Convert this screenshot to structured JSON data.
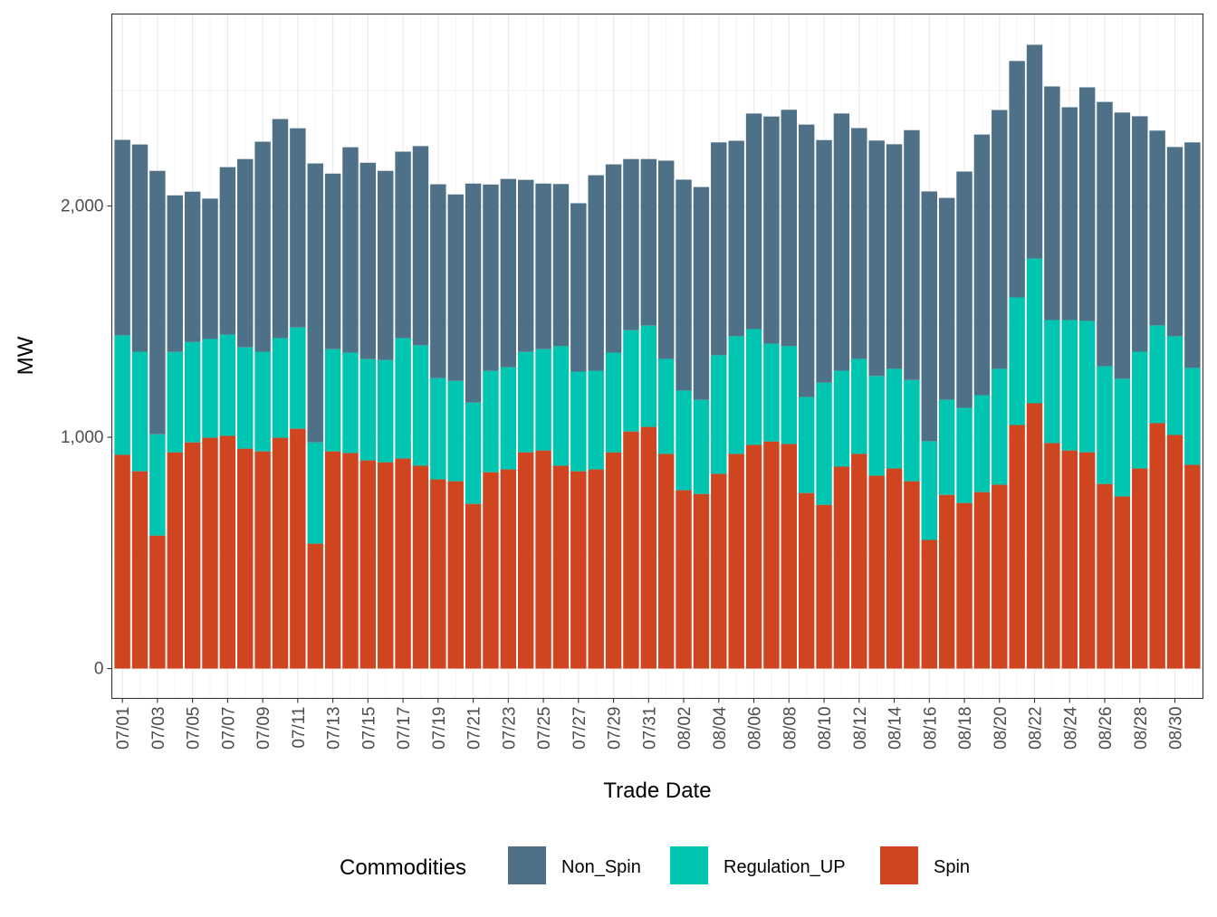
{
  "chart_data": {
    "type": "bar",
    "stacked": true,
    "xlabel": "Trade Date",
    "ylabel": "MW",
    "ylim": [
      -129,
      2830
    ],
    "y_ticks": [
      0,
      1000,
      2000
    ],
    "y_tick_labels": [
      "0",
      "1,000",
      "2,000"
    ],
    "grid": true,
    "legend": {
      "title": "Commodities",
      "placement": "bottom"
    },
    "categories": [
      "07/01",
      "07/02",
      "07/03",
      "07/04",
      "07/05",
      "07/06",
      "07/07",
      "07/08",
      "07/09",
      "07/10",
      "07/11",
      "07/12",
      "07/13",
      "07/14",
      "07/15",
      "07/16",
      "07/17",
      "07/18",
      "07/19",
      "07/20",
      "07/21",
      "07/22",
      "07/23",
      "07/24",
      "07/25",
      "07/26",
      "07/27",
      "07/28",
      "07/29",
      "07/30",
      "07/31",
      "08/01",
      "08/02",
      "08/03",
      "08/04",
      "08/05",
      "08/06",
      "08/07",
      "08/08",
      "08/09",
      "08/10",
      "08/11",
      "08/12",
      "08/13",
      "08/14",
      "08/15",
      "08/16",
      "08/17",
      "08/18",
      "08/19",
      "08/20",
      "08/21",
      "08/22",
      "08/23",
      "08/24",
      "08/25",
      "08/26",
      "08/27",
      "08/28",
      "08/29",
      "08/30",
      "08/31"
    ],
    "x_tick_labels": [
      "07/01",
      "07/03",
      "07/05",
      "07/07",
      "07/09",
      "07/11",
      "07/13",
      "07/15",
      "07/17",
      "07/19",
      "07/21",
      "07/23",
      "07/25",
      "07/27",
      "07/29",
      "07/31",
      "08/02",
      "08/04",
      "08/06",
      "08/08",
      "08/10",
      "08/12",
      "08/14",
      "08/16",
      "08/18",
      "08/20",
      "08/22",
      "08/24",
      "08/26",
      "08/28",
      "08/30"
    ],
    "series": [
      {
        "name": "Spin",
        "color": "#cf4520",
        "values": [
          924,
          853,
          575,
          935,
          978,
          998,
          1006,
          951,
          939,
          998,
          1037,
          540,
          939,
          932,
          900,
          892,
          908,
          877,
          818,
          810,
          712,
          849,
          861,
          935,
          943,
          877,
          853,
          861,
          935,
          1025,
          1045,
          928,
          771,
          755,
          842,
          928,
          967,
          982,
          971,
          759,
          708,
          873,
          928,
          834,
          865,
          810,
          556,
          751,
          716,
          763,
          795,
          1053,
          1147,
          975,
          943,
          935,
          798,
          744,
          865,
          1061,
          1010,
          881
        ]
      },
      {
        "name": "Regulation_UP",
        "color": "#00c5b0",
        "values": [
          517,
          517,
          438,
          434,
          434,
          427,
          438,
          438,
          431,
          431,
          438,
          438,
          442,
          434,
          438,
          442,
          521,
          521,
          438,
          434,
          438,
          438,
          442,
          434,
          438,
          517,
          431,
          427,
          431,
          438,
          438,
          411,
          431,
          407,
          513,
          509,
          501,
          423,
          423,
          415,
          528,
          415,
          411,
          431,
          431,
          438,
          427,
          411,
          411,
          419,
          501,
          552,
          626,
          532,
          564,
          568,
          509,
          509,
          505,
          423,
          427,
          419
        ]
      },
      {
        "name": "Non_Spin",
        "color": "#4e7188",
        "values": [
          845,
          896,
          1139,
          677,
          650,
          607,
          724,
          814,
          908,
          947,
          861,
          1206,
          759,
          888,
          849,
          818,
          806,
          861,
          838,
          806,
          947,
          806,
          814,
          744,
          716,
          701,
          728,
          845,
          814,
          740,
          720,
          857,
          912,
          920,
          920,
          845,
          932,
          982,
          1022,
          1178,
          1049,
          1112,
          998,
          1018,
          971,
          1080,
          1080,
          873,
          1022,
          1127,
          1119,
          1022,
          924,
          1010,
          920,
          1010,
          1143,
          1151,
          1018,
          842,
          818,
          975
        ]
      }
    ],
    "legend_order": [
      "Non_Spin",
      "Regulation_UP",
      "Spin"
    ]
  }
}
